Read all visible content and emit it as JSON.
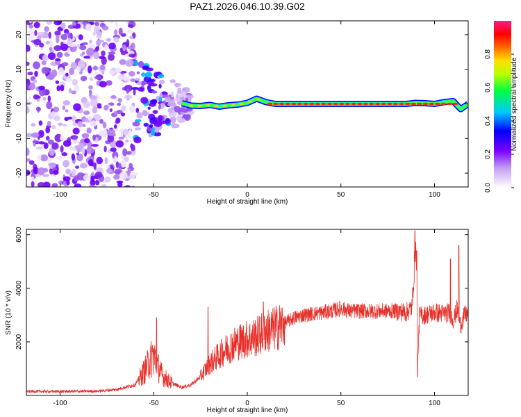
{
  "title": "PAZ1.2026.046.10.39.G02",
  "chart_data": [
    {
      "type": "heatmap",
      "name": "spectrogram",
      "xlabel": "Height of straight line (km)",
      "ylabel": "Frequency (Hz)",
      "xlim": [
        -118,
        118
      ],
      "ylim": [
        -24,
        24
      ],
      "xticks": [
        "-100",
        "-50",
        "0",
        "50",
        "100"
      ],
      "yticks": [
        "-20",
        "-10",
        "0",
        "10",
        "20"
      ],
      "description_points": {
        "noise_region_km": [
          -118,
          -60
        ],
        "transition_region_km": [
          -60,
          -30
        ],
        "tone_ridge": {
          "x": [
            -35,
            -30,
            -25,
            -20,
            -15,
            -10,
            -5,
            0,
            5,
            10,
            15,
            30,
            50,
            70,
            85,
            90,
            95,
            100,
            105,
            110,
            114,
            118
          ],
          "y": [
            0.2,
            -0.5,
            -0.6,
            -0.3,
            -0.8,
            -0.4,
            -0.2,
            0.3,
            1.5,
            0.5,
            0.0,
            0.0,
            0.0,
            0.0,
            0.0,
            0.3,
            0.2,
            0.0,
            0.5,
            0.8,
            -1.5,
            0.0
          ]
        }
      },
      "colorbar": {
        "label": "Normalized spectral amplitude",
        "range": [
          0.0,
          1.0
        ],
        "ticks": [
          "0.0",
          "0.2",
          "0.4",
          "0.6",
          "0.8"
        ]
      }
    },
    {
      "type": "line",
      "name": "snr",
      "xlabel": "Height of straight line (km)",
      "ylabel": "SNR (10 * v/v)",
      "xlim": [
        -118,
        118
      ],
      "ylim": [
        0,
        6200
      ],
      "xticks": [
        "-100",
        "-50",
        "0",
        "50",
        "100"
      ],
      "yticks": [
        "2000",
        "4000",
        "6000"
      ],
      "color": "#e8302a",
      "series": [
        {
          "name": "SNR",
          "x": [
            -118,
            -100,
            -80,
            -70,
            -60,
            -55,
            -52,
            -50,
            -48,
            -45,
            -40,
            -35,
            -30,
            -25,
            -22,
            -20,
            -15,
            -10,
            -5,
            0,
            5,
            10,
            15,
            20,
            25,
            30,
            35,
            40,
            45,
            48,
            50,
            55,
            60,
            70,
            80,
            85,
            88,
            90,
            91,
            92,
            95,
            100,
            105,
            108,
            110,
            112,
            114,
            116,
            118
          ],
          "y": [
            150,
            150,
            160,
            220,
            400,
            900,
            1300,
            1500,
            1100,
            700,
            450,
            300,
            400,
            700,
            1000,
            1200,
            1500,
            1800,
            2000,
            2100,
            2200,
            2400,
            2500,
            2700,
            2900,
            3000,
            3050,
            3100,
            3150,
            3200,
            3250,
            3150,
            3150,
            3150,
            3150,
            3100,
            3300,
            5800,
            1200,
            3000,
            3000,
            3100,
            3050,
            3100,
            2800,
            3200,
            2600,
            3000,
            3050
          ]
        }
      ],
      "spikes": [
        {
          "x": -48.5,
          "y": 2900
        },
        {
          "x": -21,
          "y": 3300
        },
        {
          "x": 8.5,
          "y": 3500
        },
        {
          "x": 89.5,
          "y": 6150
        },
        {
          "x": 90.5,
          "y": 5400
        },
        {
          "x": 91,
          "y": 700
        },
        {
          "x": 108.5,
          "y": 5100
        },
        {
          "x": 113,
          "y": 5600
        }
      ]
    }
  ]
}
